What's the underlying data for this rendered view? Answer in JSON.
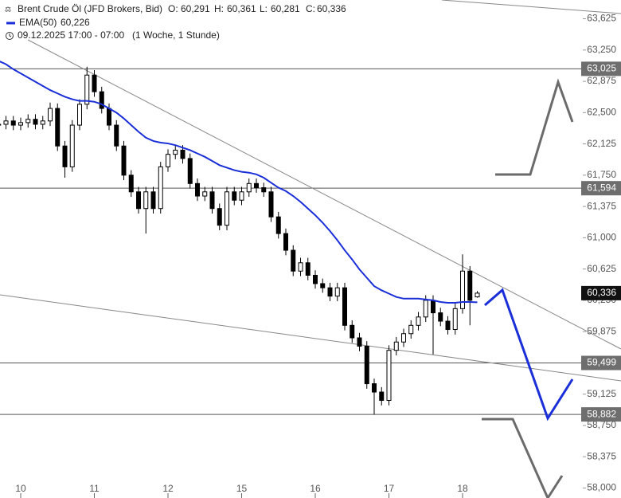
{
  "header": {
    "title": "Brent Crude Öl (JFD Brokers, Bid)",
    "ohlc": [
      {
        "key": "O:",
        "text": "60,291"
      },
      {
        "key": "H:",
        "text": "60,361"
      },
      {
        "key": "L:",
        "text": "60,281"
      },
      {
        "key": "C:",
        "text": "60,336"
      }
    ],
    "date_range": "09.12.2025 17:00 - 07:00",
    "period": "(1 Woche, 1 Stunde)"
  },
  "chart_data": {
    "type": "candlestick",
    "categories": [
      null,
      null,
      null,
      "10",
      null,
      null,
      null,
      null,
      null,
      null,
      null,
      null,
      null,
      "11",
      null,
      null,
      null,
      null,
      null,
      null,
      null,
      null,
      null,
      "12",
      null,
      null,
      null,
      null,
      null,
      null,
      null,
      null,
      null,
      "15",
      null,
      null,
      null,
      null,
      null,
      null,
      null,
      null,
      null,
      "16",
      null,
      null,
      null,
      null,
      null,
      null,
      null,
      null,
      null,
      "17",
      null,
      null,
      null,
      null,
      null,
      null,
      null,
      null,
      null,
      "18",
      null,
      null
    ],
    "open": [
      62.35,
      62.36,
      62.4,
      62.35,
      62.38,
      62.42,
      62.36,
      62.4,
      62.55,
      62.1,
      61.85,
      62.35,
      62.6,
      62.95,
      62.75,
      62.55,
      62.35,
      62.1,
      61.75,
      61.55,
      61.35,
      61.55,
      61.35,
      61.85,
      62.0,
      62.05,
      61.95,
      61.65,
      61.5,
      61.55,
      61.35,
      61.15,
      61.55,
      61.45,
      61.55,
      61.65,
      61.6,
      61.55,
      61.25,
      61.05,
      60.85,
      60.6,
      60.7,
      60.55,
      60.45,
      60.4,
      60.3,
      60.4,
      59.95,
      59.8,
      59.7,
      59.25,
      59.15,
      59.05,
      59.65,
      59.75,
      59.85,
      59.95,
      60.05,
      60.25,
      60.1,
      60.0,
      59.9,
      60.15,
      60.6,
      60.291
    ],
    "high": [
      62.42,
      62.46,
      62.46,
      62.44,
      62.48,
      62.48,
      62.46,
      62.62,
      62.61,
      62.16,
      62.41,
      62.66,
      63.05,
      63.01,
      62.81,
      62.61,
      62.41,
      62.16,
      61.81,
      61.61,
      61.61,
      61.61,
      61.91,
      62.06,
      62.11,
      62.11,
      62.01,
      61.71,
      61.61,
      61.61,
      61.41,
      61.61,
      61.61,
      61.61,
      61.71,
      61.71,
      61.66,
      61.61,
      61.31,
      61.11,
      60.91,
      60.76,
      60.76,
      60.61,
      60.51,
      60.46,
      60.46,
      60.46,
      60.01,
      59.86,
      59.76,
      59.31,
      59.21,
      59.71,
      59.81,
      59.91,
      60.01,
      60.11,
      60.31,
      60.31,
      60.16,
      60.06,
      60.21,
      60.8,
      60.66,
      60.361
    ],
    "low": [
      62.29,
      62.3,
      62.29,
      62.29,
      62.32,
      62.3,
      62.3,
      62.34,
      62.04,
      61.72,
      61.79,
      62.29,
      62.54,
      62.69,
      62.49,
      62.29,
      62.04,
      61.69,
      61.49,
      61.29,
      61.05,
      61.29,
      61.29,
      61.79,
      61.94,
      61.89,
      61.59,
      61.44,
      61.44,
      61.29,
      61.09,
      61.09,
      61.39,
      61.39,
      61.49,
      61.54,
      61.49,
      61.19,
      60.99,
      60.79,
      60.54,
      60.54,
      60.49,
      60.39,
      60.34,
      60.24,
      60.24,
      59.89,
      59.74,
      59.64,
      59.19,
      58.88,
      58.99,
      58.99,
      59.59,
      59.69,
      59.79,
      59.89,
      59.99,
      59.6,
      59.94,
      59.84,
      59.84,
      60.09,
      59.95,
      60.281
    ],
    "close": [
      62.36,
      62.4,
      62.35,
      62.38,
      62.42,
      62.36,
      62.4,
      62.55,
      62.1,
      61.85,
      62.35,
      62.6,
      62.95,
      62.75,
      62.55,
      62.35,
      62.1,
      61.75,
      61.55,
      61.35,
      61.55,
      61.35,
      61.85,
      62.0,
      62.05,
      61.95,
      61.65,
      61.5,
      61.55,
      61.35,
      61.15,
      61.55,
      61.45,
      61.55,
      61.65,
      61.6,
      61.55,
      61.25,
      61.05,
      60.85,
      60.6,
      60.7,
      60.55,
      60.45,
      60.4,
      60.3,
      60.4,
      59.95,
      59.8,
      59.7,
      59.25,
      59.15,
      59.05,
      59.65,
      59.75,
      59.85,
      59.95,
      60.05,
      60.25,
      60.1,
      60.0,
      59.9,
      60.15,
      60.6,
      60.25,
      60.336
    ],
    "ema": {
      "name": "EMA(50)",
      "color": "#1a2fd8",
      "value_label": "60,226",
      "values": [
        63.12,
        63.08,
        63.02,
        62.97,
        62.92,
        62.87,
        62.82,
        62.77,
        62.73,
        62.69,
        62.66,
        62.64,
        62.64,
        62.63,
        62.6,
        62.55,
        62.5,
        62.43,
        62.35,
        62.27,
        62.2,
        62.16,
        62.14,
        62.13,
        62.11,
        62.08,
        62.05,
        62.01,
        61.97,
        61.92,
        61.87,
        61.84,
        61.81,
        61.79,
        61.78,
        61.76,
        61.72,
        61.66,
        61.6,
        61.56,
        61.5,
        61.43,
        61.35,
        61.27,
        61.18,
        61.08,
        60.97,
        60.85,
        60.74,
        60.62,
        60.52,
        60.42,
        60.37,
        60.33,
        60.29,
        60.27,
        60.27,
        60.27,
        60.26,
        60.25,
        60.23,
        60.22,
        60.22,
        60.23,
        60.23,
        60.226
      ]
    },
    "ylim": [
      57.88,
      63.85
    ],
    "yticks": [
      {
        "value": 63.625,
        "label": "63,625"
      },
      {
        "value": 63.25,
        "label": "63,250"
      },
      {
        "value": 62.875,
        "label": "62,875"
      },
      {
        "value": 62.5,
        "label": "62,500"
      },
      {
        "value": 62.125,
        "label": "62,125"
      },
      {
        "value": 61.75,
        "label": "61,750"
      },
      {
        "value": 61.375,
        "label": "61,375"
      },
      {
        "value": 61,
        "label": "61,000"
      },
      {
        "value": 60.625,
        "label": "60,625"
      },
      {
        "value": 60.25,
        "label": "60,250"
      },
      {
        "value": 59.875,
        "label": "59,875"
      },
      {
        "value": 59.5,
        "label": "59,500"
      },
      {
        "value": 59.125,
        "label": "59,125"
      },
      {
        "value": 58.75,
        "label": "58,750"
      },
      {
        "value": 58.375,
        "label": "58,375"
      },
      {
        "value": 58,
        "label": "58,000"
      }
    ],
    "levels": [
      {
        "value": 63.025,
        "label": "63,025"
      },
      {
        "value": 61.594,
        "label": "61,594"
      },
      {
        "value": 59.499,
        "label": "59,499"
      },
      {
        "value": 58.882,
        "label": "58,882"
      }
    ],
    "last_price": {
      "value": 60.336,
      "label": "60,336"
    },
    "up_color": "#ffffff",
    "down_color": "#000000"
  }
}
